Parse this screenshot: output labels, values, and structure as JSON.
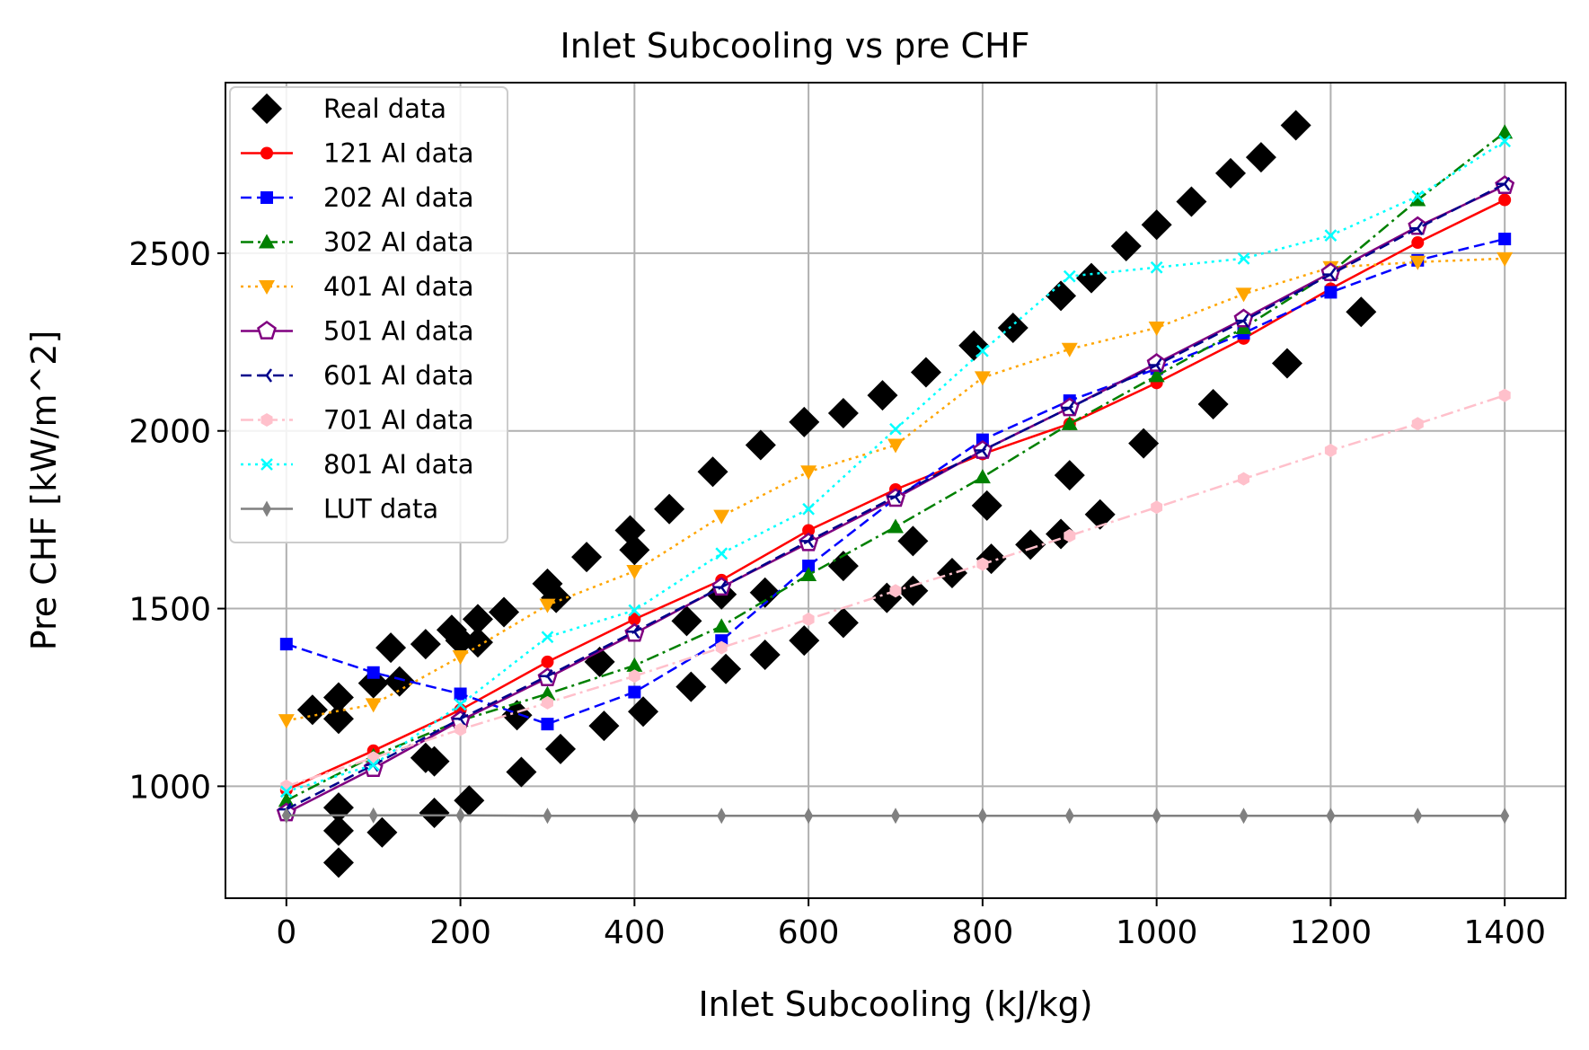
{
  "chart_data": {
    "type": "scatter",
    "title": "Inlet Subcooling vs pre CHF",
    "xlabel": "Inlet Subcooling (kJ/kg)",
    "ylabel": "Pre CHF [kW/m^2]",
    "xlim": [
      -70,
      1470
    ],
    "ylim": [
      685,
      2980
    ],
    "xticks": [
      0,
      200,
      400,
      600,
      800,
      1000,
      1200,
      1400
    ],
    "yticks": [
      1000,
      1500,
      2000,
      2500
    ],
    "grid": true,
    "legend_position": "upper-left",
    "series": [
      {
        "name": "Real data",
        "color": "#000000",
        "marker": "diamond",
        "line": "none",
        "points": [
          [
            30,
            1215
          ],
          [
            60,
            1250
          ],
          [
            60,
            1190
          ],
          [
            60,
            940
          ],
          [
            60,
            875
          ],
          [
            60,
            785
          ],
          [
            100,
            1290
          ],
          [
            110,
            870
          ],
          [
            120,
            1390
          ],
          [
            130,
            1295
          ],
          [
            160,
            1080
          ],
          [
            170,
            1070
          ],
          [
            160,
            1400
          ],
          [
            170,
            925
          ],
          [
            190,
            1440
          ],
          [
            200,
            1410
          ],
          [
            210,
            960
          ],
          [
            220,
            1470
          ],
          [
            220,
            1405
          ],
          [
            250,
            1490
          ],
          [
            265,
            1200
          ],
          [
            270,
            1040
          ],
          [
            300,
            1570
          ],
          [
            310,
            1530
          ],
          [
            315,
            1105
          ],
          [
            345,
            1645
          ],
          [
            360,
            1350
          ],
          [
            365,
            1170
          ],
          [
            395,
            1720
          ],
          [
            400,
            1665
          ],
          [
            410,
            1210
          ],
          [
            440,
            1780
          ],
          [
            460,
            1465
          ],
          [
            465,
            1280
          ],
          [
            490,
            1885
          ],
          [
            500,
            1540
          ],
          [
            505,
            1330
          ],
          [
            545,
            1960
          ],
          [
            550,
            1545
          ],
          [
            550,
            1370
          ],
          [
            595,
            2025
          ],
          [
            595,
            1410
          ],
          [
            640,
            2050
          ],
          [
            640,
            1620
          ],
          [
            640,
            1460
          ],
          [
            685,
            2100
          ],
          [
            690,
            1530
          ],
          [
            735,
            2165
          ],
          [
            720,
            1690
          ],
          [
            720,
            1550
          ],
          [
            765,
            1600
          ],
          [
            790,
            2240
          ],
          [
            805,
            1790
          ],
          [
            810,
            1640
          ],
          [
            835,
            2290
          ],
          [
            855,
            1680
          ],
          [
            890,
            2380
          ],
          [
            890,
            1710
          ],
          [
            900,
            1875
          ],
          [
            925,
            2430
          ],
          [
            935,
            1765
          ],
          [
            965,
            2520
          ],
          [
            985,
            1965
          ],
          [
            1000,
            2580
          ],
          [
            1040,
            2645
          ],
          [
            1065,
            2075
          ],
          [
            1085,
            2725
          ],
          [
            1120,
            2770
          ],
          [
            1150,
            2190
          ],
          [
            1160,
            2860
          ],
          [
            1235,
            2335
          ]
        ]
      },
      {
        "name": "121 AI data",
        "color": "#ff0000",
        "marker": "circle",
        "line": "solid",
        "x": [
          0,
          100,
          200,
          300,
          400,
          500,
          600,
          700,
          800,
          900,
          1000,
          1100,
          1200,
          1300,
          1400
        ],
        "y": [
          990,
          1100,
          1215,
          1350,
          1470,
          1580,
          1720,
          1835,
          1935,
          2020,
          2135,
          2260,
          2400,
          2530,
          2650
        ]
      },
      {
        "name": "202 AI data",
        "color": "#0000ff",
        "marker": "square",
        "line": "dashed",
        "x": [
          0,
          100,
          200,
          300,
          400,
          500,
          600,
          700,
          800,
          900,
          1000,
          1100,
          1200,
          1300,
          1400
        ],
        "y": [
          1400,
          1320,
          1260,
          1175,
          1265,
          1410,
          1620,
          1810,
          1975,
          2085,
          2175,
          2275,
          2390,
          2480,
          2540
        ]
      },
      {
        "name": "302 AI data",
        "color": "#008000",
        "marker": "triangle-up",
        "line": "dashdot",
        "x": [
          0,
          100,
          200,
          300,
          400,
          500,
          600,
          700,
          800,
          900,
          1000,
          1100,
          1200,
          1300,
          1400
        ],
        "y": [
          960,
          1085,
          1185,
          1260,
          1340,
          1450,
          1595,
          1730,
          1870,
          2020,
          2155,
          2290,
          2445,
          2650,
          2840
        ]
      },
      {
        "name": "401 AI data",
        "color": "#ffa500",
        "marker": "triangle-down",
        "line": "dotted",
        "x": [
          0,
          100,
          200,
          300,
          400,
          500,
          600,
          700,
          800,
          900,
          1000,
          1100,
          1200,
          1300,
          1400
        ],
        "y": [
          1185,
          1230,
          1365,
          1510,
          1605,
          1760,
          1885,
          1960,
          2150,
          2230,
          2290,
          2385,
          2460,
          2475,
          2485
        ]
      },
      {
        "name": "501 AI data",
        "color": "#800080",
        "marker": "pentagon",
        "line": "solid",
        "x": [
          0,
          100,
          200,
          300,
          400,
          500,
          600,
          700,
          800,
          900,
          1000,
          1100,
          1200,
          1300,
          1400
        ],
        "y": [
          925,
          1050,
          1185,
          1305,
          1430,
          1560,
          1685,
          1810,
          1945,
          2065,
          2190,
          2315,
          2445,
          2575,
          2690
        ]
      },
      {
        "name": "601 AI data",
        "color": "#00008b",
        "marker": "tri-left",
        "line": "dashed",
        "x": [
          0,
          100,
          200,
          300,
          400,
          500,
          600,
          700,
          800,
          900,
          1000,
          1100,
          1200,
          1300,
          1400
        ],
        "y": [
          935,
          1060,
          1190,
          1310,
          1435,
          1560,
          1690,
          1815,
          1945,
          2065,
          2185,
          2310,
          2440,
          2570,
          2695
        ]
      },
      {
        "name": "701 AI data",
        "color": "#ffc0cb",
        "marker": "hexagon",
        "line": "dashdot",
        "x": [
          0,
          100,
          200,
          300,
          400,
          500,
          600,
          700,
          800,
          900,
          1000,
          1100,
          1200,
          1300,
          1400
        ],
        "y": [
          1000,
          1080,
          1160,
          1235,
          1310,
          1390,
          1470,
          1550,
          1625,
          1705,
          1785,
          1865,
          1945,
          2020,
          2100
        ]
      },
      {
        "name": "801 AI data",
        "color": "#00ffff",
        "marker": "x",
        "line": "dotted",
        "x": [
          0,
          100,
          200,
          300,
          400,
          500,
          600,
          700,
          800,
          900,
          1000,
          1100,
          1200,
          1300,
          1400
        ],
        "y": [
          985,
          1060,
          1230,
          1420,
          1495,
          1655,
          1780,
          2005,
          2225,
          2435,
          2460,
          2485,
          2550,
          2660,
          2815
        ]
      },
      {
        "name": "LUT data",
        "color": "#808080",
        "marker": "thin-diamond",
        "line": "solid",
        "x": [
          0,
          100,
          200,
          300,
          400,
          500,
          600,
          700,
          800,
          900,
          1000,
          1100,
          1200,
          1300,
          1400
        ],
        "y": [
          918,
          918,
          918,
          917,
          917,
          917,
          917,
          917,
          917,
          917,
          917,
          917,
          917,
          917,
          917
        ]
      }
    ]
  }
}
